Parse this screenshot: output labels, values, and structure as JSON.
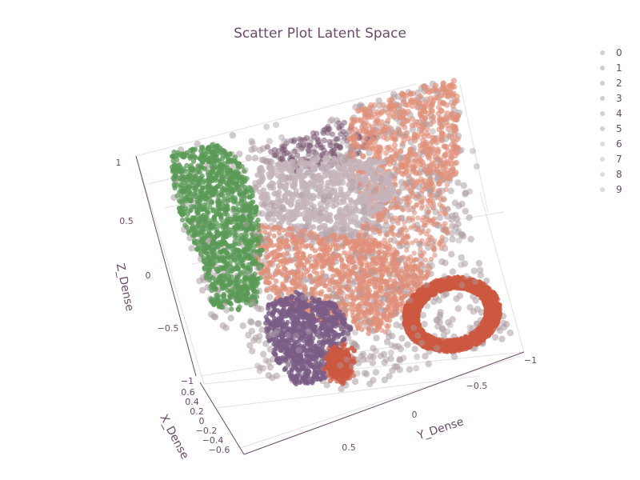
{
  "chart_data": {
    "type": "scatter",
    "mode": "3d",
    "title": "Scatter Plot Latent Space",
    "xlabel": "X_Dense",
    "ylabel": "Y_Dense",
    "zlabel": "Z_Dense",
    "legend": {
      "placement": "top-right",
      "entries": [
        "0",
        "1",
        "2",
        "3",
        "4",
        "5",
        "6",
        "7",
        "8",
        "9"
      ]
    },
    "z_ticks": [
      "1",
      "0.5",
      "0",
      "−0.5",
      "−1"
    ],
    "x_ticks": [
      "0.6",
      "0.4",
      "0.2",
      "0",
      "−0.2",
      "−0.4",
      "−0.6"
    ],
    "y_ticks": [
      "−1",
      "−0.5",
      "0",
      "0.5"
    ],
    "series_colors": [
      "#b3a4a8",
      "#b3a4a8",
      "#b3a4a8",
      "#b3a4a8",
      "#b3a4a8",
      "#b3a4a8",
      "#c9bcc2",
      "#c9bcc2",
      "#c9bcc2",
      "#c9bcc2"
    ],
    "cluster_colors": {
      "green": "#5a9a55",
      "purple": "#7a5c86",
      "salmon": "#e0907a",
      "red": "#cc5840",
      "lavender": "#c4b4bc",
      "darkpurple": "#7c5a74",
      "gray": "#ad9da3"
    },
    "grid": true
  }
}
